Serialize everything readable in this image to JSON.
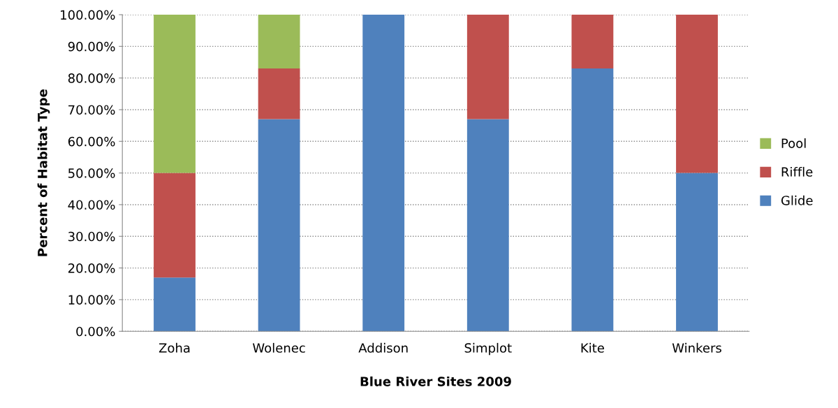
{
  "chart_data": {
    "type": "bar",
    "stacked": true,
    "xlabel": "Blue River Sites 2009",
    "ylabel": "Percent of Habitat Type",
    "categories": [
      "Zoha",
      "Wolenec",
      "Addison",
      "Simplot",
      "Kite",
      "Winkers"
    ],
    "series": [
      {
        "name": "Glide",
        "color": "#4f81bd",
        "values": [
          17,
          67,
          100,
          67,
          83,
          50
        ]
      },
      {
        "name": "Riffle",
        "color": "#c0504d",
        "values": [
          33,
          16,
          0,
          33,
          17,
          50
        ]
      },
      {
        "name": "Pool",
        "color": "#9bbb59",
        "values": [
          50,
          17,
          0,
          0,
          0,
          0
        ]
      }
    ],
    "ylim": [
      0,
      100
    ],
    "yticks": [
      {
        "value": 0,
        "label": "0.00%"
      },
      {
        "value": 10,
        "label": "10.00%"
      },
      {
        "value": 20,
        "label": "20.00%"
      },
      {
        "value": 30,
        "label": "30.00%"
      },
      {
        "value": 40,
        "label": "40.00%"
      },
      {
        "value": 50,
        "label": "50.00%"
      },
      {
        "value": 60,
        "label": "60.00%"
      },
      {
        "value": 70,
        "label": "70.00%"
      },
      {
        "value": 80,
        "label": "80.00%"
      },
      {
        "value": 90,
        "label": "90.00%"
      },
      {
        "value": 100,
        "label": "100.00%"
      }
    ],
    "grid": "y",
    "legend": "right"
  }
}
